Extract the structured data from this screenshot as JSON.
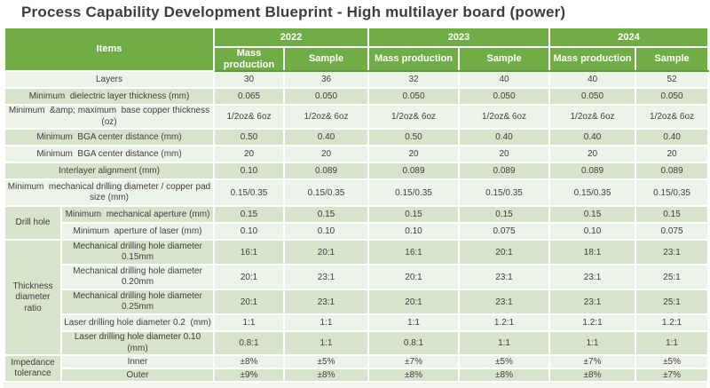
{
  "title": "Process Capability Development Blueprint - High multilayer board (power)",
  "colors": {
    "header_green": "#70AD47",
    "row_shade_dark": "#D7E3CB",
    "row_shade_light": "#EEF3E9",
    "header_divider_green": "#5E9A3C",
    "text": "#404040"
  },
  "table": {
    "items_header": "Items",
    "years": [
      {
        "label": "2022",
        "cols": [
          "Mass production",
          "Sample"
        ]
      },
      {
        "label": "2023",
        "cols": [
          "Mass production",
          "Sample"
        ]
      },
      {
        "label": "2024",
        "cols": [
          "Mass production",
          "Sample"
        ]
      }
    ],
    "rows": [
      {
        "kind": "full",
        "label": "Layers",
        "values": [
          "30",
          "36",
          "32",
          "40",
          "40",
          "52"
        ],
        "shade": "light",
        "h": 19
      },
      {
        "kind": "full",
        "label": "Minimum  dielectric layer thickness (mm)",
        "values": [
          "0.065",
          "0.050",
          "0.050",
          "0.050",
          "0.050",
          "0.050"
        ],
        "shade": "dark",
        "h": 19
      },
      {
        "kind": "full",
        "label": "Minimum  &amp; maximum  base copper thickness (oz)",
        "values": [
          "1/2oz& 6oz",
          "1/2oz& 6oz",
          "1/2oz& 6oz",
          "1/2oz& 6oz",
          "1/2oz& 6oz",
          "1/2oz& 6oz"
        ],
        "shade": "light",
        "h": 19
      },
      {
        "kind": "full",
        "label": "Minimum  BGA center distance (mm)",
        "values": [
          "0.50",
          "0.40",
          "0.50",
          "0.40",
          "0.40",
          "0.40"
        ],
        "shade": "dark",
        "h": 19
      },
      {
        "kind": "full",
        "label": "Minimum  BGA center distance (mm)",
        "values": [
          "20",
          "20",
          "20",
          "20",
          "20",
          "20"
        ],
        "shade": "light",
        "h": 19
      },
      {
        "kind": "full",
        "label": "Interlayer alignment (mm)",
        "values": [
          "0.10",
          "0.089",
          "0.089",
          "0.089",
          "0.089",
          "0.089"
        ],
        "shade": "dark",
        "h": 19
      },
      {
        "kind": "full",
        "label": "Minimum  mechanical drilling diameter / copper pad size (mm)",
        "values": [
          "0.15/0.35",
          "0.15/0.35",
          "0.15/0.35",
          "0.15/0.35",
          "0.15/0.35",
          "0.15/0.35"
        ],
        "shade": "light",
        "h": 30
      },
      {
        "kind": "groupStart",
        "group": "Drill hole",
        "span": 2,
        "label": "Minimum  mechanical aperture (mm)",
        "values": [
          "0.15",
          "0.15",
          "0.15",
          "0.15",
          "0.15",
          "0.15"
        ],
        "shade": "dark",
        "h": 19
      },
      {
        "kind": "groupCont",
        "label": "Minimum  aperture of laser (mm)",
        "values": [
          "0.10",
          "0.10",
          "0.10",
          "0.075",
          "0.10",
          "0.075"
        ],
        "shade": "light",
        "h": 19
      },
      {
        "kind": "groupStart",
        "group": "Thickness diameter ratio",
        "span": 5,
        "label": "Mechanical drilling hole diameter 0.15mm",
        "values": [
          "16:1",
          "20:1",
          "16:1",
          "20:1",
          "18:1",
          "23:1"
        ],
        "shade": "dark",
        "h": 28
      },
      {
        "kind": "groupCont",
        "label": "Mechanical drilling hole diameter 0.20mm",
        "values": [
          "20:1",
          "23:1",
          "20:1",
          "23:1",
          "23:1",
          "25:1"
        ],
        "shade": "light",
        "h": 28
      },
      {
        "kind": "groupCont",
        "label": "Mechanical drilling hole diameter 0.25mm",
        "values": [
          "20:1",
          "23:1",
          "20:1",
          "23:1",
          "23:1",
          "25:1"
        ],
        "shade": "dark",
        "h": 28
      },
      {
        "kind": "groupCont",
        "label": "Laser drilling hole diameter 0.2  (mm)",
        "values": [
          "1:1",
          "1:1",
          "1:1",
          "1.2:1",
          "1.2:1",
          "1.2:1"
        ],
        "shade": "light",
        "h": 19
      },
      {
        "kind": "groupCont",
        "label": "Laser drilling hole diameter 0.10  (mm)",
        "values": [
          "0.8:1",
          "1:1",
          "0.8:1",
          "1:1",
          "1:1",
          "1:1"
        ],
        "shade": "dark",
        "h": 19
      },
      {
        "kind": "groupStart",
        "group": "Impedance tolerance",
        "span": 2,
        "label": "Inner",
        "values": [
          "±8%",
          "±5%",
          "±7%",
          "±5%",
          "±7%",
          "±5%"
        ],
        "shade": "light",
        "h": 15
      },
      {
        "kind": "groupCont",
        "label": "Outer",
        "values": [
          "±9%",
          "±8%",
          "±8%",
          "±8%",
          "±8%",
          "±7%"
        ],
        "shade": "dark",
        "h": 15
      }
    ]
  }
}
